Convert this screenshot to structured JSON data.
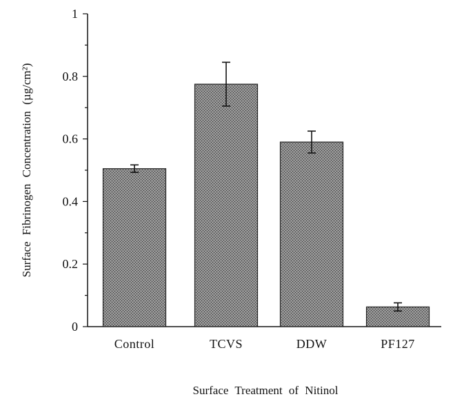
{
  "chart_data": {
    "type": "bar",
    "title": "",
    "xlabel": "Surface Treatment of Nitinol",
    "ylabel": "Surface Fibrinogen Concentration (µg/cm²)",
    "categories": [
      "Control",
      "TCVS",
      "DDW",
      "PF127"
    ],
    "values": [
      0.505,
      0.775,
      0.59,
      0.063
    ],
    "error_upper": [
      0.012,
      0.07,
      0.035,
      0.013
    ],
    "error_lower": [
      0.012,
      0.07,
      0.035,
      0.013
    ],
    "ylim": [
      0,
      1
    ],
    "yticks": [
      0,
      0.2,
      0.4,
      0.6,
      0.8,
      1
    ],
    "ytick_labels": [
      "0",
      "0.2",
      "0.4",
      "0.6",
      "0.8",
      "1"
    ],
    "grid": false,
    "bar_color": "#7a7a7a"
  }
}
